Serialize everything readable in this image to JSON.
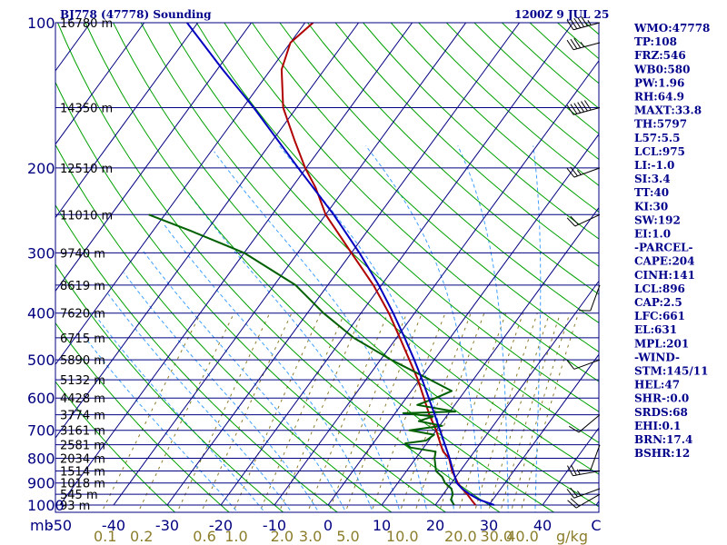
{
  "header": {
    "station": "BJ778 (47778) Sounding",
    "time": "1200Z  9 JUL 25"
  },
  "colors": {
    "isobar": "#000080",
    "isotherm": "#000080",
    "dry_adiabat": "#00a000",
    "moist_adiabat": "#40a0ff",
    "mixing_ratio": "#8b7d2b",
    "temperature": "#b00000",
    "dewpoint": "#006000",
    "parcel": "#0000c0",
    "wind_barb": "#000000"
  },
  "axis_labels": {
    "p_unit": "mb",
    "mixing_unit": "g/kg"
  },
  "chart_data": {
    "type": "line",
    "title": "BJ778 (47778) Sounding",
    "subtitle": "1200Z  9 JUL 25",
    "y_axis": "pressure (mb), logarithmic",
    "ylim": [
      1000,
      100
    ],
    "xlim": [
      -50,
      50
    ],
    "x_unit": "°C",
    "pressure_ticks": [
      "100",
      "200",
      "300",
      "400",
      "500",
      "600",
      "700",
      "800",
      "900",
      "1000"
    ],
    "temperature_ticks": [
      "-50",
      "-40",
      "-30",
      "-20",
      "-10",
      "0",
      "10",
      "20",
      "30",
      "40",
      "C"
    ],
    "temperature_tick_values": [
      -50,
      -40,
      -30,
      -20,
      -10,
      0,
      10,
      20,
      30,
      40,
      50
    ],
    "mixing_ratio_ticks": [
      "0.1",
      "0.2",
      "0.6",
      "1.0",
      "2.0",
      "3.0",
      "5.0",
      "10.0",
      "20.0",
      "30.0",
      "40.0"
    ],
    "mixing_ratio_values": [
      0.1,
      0.2,
      0.6,
      1.0,
      2.0,
      3.0,
      5.0,
      10.0,
      20.0,
      30.0,
      40.0
    ],
    "height_labels": [
      {
        "p": 100,
        "text": "16780 m"
      },
      {
        "p": 150,
        "text": "14350 m"
      },
      {
        "p": 200,
        "text": "12510 m"
      },
      {
        "p": 250,
        "text": "11010 m"
      },
      {
        "p": 300,
        "text": "9740 m"
      },
      {
        "p": 350,
        "text": "8619 m"
      },
      {
        "p": 400,
        "text": "7620 m"
      },
      {
        "p": 450,
        "text": "6715 m"
      },
      {
        "p": 500,
        "text": "5890 m"
      },
      {
        "p": 550,
        "text": "5132 m"
      },
      {
        "p": 600,
        "text": "4428 m"
      },
      {
        "p": 650,
        "text": "3774 m"
      },
      {
        "p": 700,
        "text": "3161 m"
      },
      {
        "p": 750,
        "text": "2581 m"
      },
      {
        "p": 800,
        "text": "2034 m"
      },
      {
        "p": 850,
        "text": "1514 m"
      },
      {
        "p": 900,
        "text": "1018 m"
      },
      {
        "p": 950,
        "text": "545 m"
      },
      {
        "p": 1000,
        "text": "93 m"
      }
    ],
    "series": [
      {
        "key": "temperature",
        "points": [
          {
            "p": 1000,
            "t": 27.5
          },
          {
            "p": 975,
            "t": 26
          },
          {
            "p": 950,
            "t": 24.5
          },
          {
            "p": 925,
            "t": 22.8
          },
          {
            "p": 900,
            "t": 21.2
          },
          {
            "p": 850,
            "t": 18.5
          },
          {
            "p": 800,
            "t": 16.2
          },
          {
            "p": 775,
            "t": 14.2
          },
          {
            "p": 750,
            "t": 12.8
          },
          {
            "p": 700,
            "t": 10
          },
          {
            "p": 650,
            "t": 6.6
          },
          {
            "p": 600,
            "t": 3.3
          },
          {
            "p": 550,
            "t": -0.3
          },
          {
            "p": 500,
            "t": -4.6
          },
          {
            "p": 450,
            "t": -9.4
          },
          {
            "p": 400,
            "t": -14.8
          },
          {
            "p": 350,
            "t": -21.5
          },
          {
            "p": 300,
            "t": -30
          },
          {
            "p": 250,
            "t": -40
          },
          {
            "p": 220,
            "t": -45.5
          },
          {
            "p": 200,
            "t": -50.2
          },
          {
            "p": 175,
            "t": -56
          },
          {
            "p": 150,
            "t": -62.5
          },
          {
            "p": 125,
            "t": -68
          },
          {
            "p": 110,
            "t": -70
          },
          {
            "p": 100,
            "t": -68.5
          }
        ]
      },
      {
        "key": "dewpoint",
        "points": [
          {
            "p": 1000,
            "t": 23.5
          },
          {
            "p": 975,
            "t": 22.2
          },
          {
            "p": 950,
            "t": 21.8
          },
          {
            "p": 925,
            "t": 20.8
          },
          {
            "p": 900,
            "t": 18.8
          },
          {
            "p": 875,
            "t": 17.5
          },
          {
            "p": 850,
            "t": 15.5
          },
          {
            "p": 800,
            "t": 13.5
          },
          {
            "p": 775,
            "t": 12.8
          },
          {
            "p": 760,
            "t": 7.5
          },
          {
            "p": 745,
            "t": 6
          },
          {
            "p": 735,
            "t": 9.5
          },
          {
            "p": 715,
            "t": 10.2
          },
          {
            "p": 700,
            "t": 5
          },
          {
            "p": 685,
            "t": 10.5
          },
          {
            "p": 670,
            "t": 5.5
          },
          {
            "p": 655,
            "t": 7.5
          },
          {
            "p": 645,
            "t": 1.5
          },
          {
            "p": 640,
            "t": 11
          },
          {
            "p": 620,
            "t": 3
          },
          {
            "p": 600,
            "t": 5.5
          },
          {
            "p": 580,
            "t": 7.5
          },
          {
            "p": 550,
            "t": 2
          },
          {
            "p": 500,
            "t": -8
          },
          {
            "p": 450,
            "t": -18
          },
          {
            "p": 400,
            "t": -27
          },
          {
            "p": 350,
            "t": -36
          },
          {
            "p": 300,
            "t": -50
          },
          {
            "p": 270,
            "t": -63
          },
          {
            "p": 250,
            "t": -73
          }
        ]
      },
      {
        "key": "parcel",
        "points": [
          {
            "p": 1000,
            "t": 31
          },
          {
            "p": 975,
            "t": 27.5
          },
          {
            "p": 950,
            "t": 25
          },
          {
            "p": 925,
            "t": 22.8
          },
          {
            "p": 900,
            "t": 21
          },
          {
            "p": 850,
            "t": 18.7
          },
          {
            "p": 800,
            "t": 16.3
          },
          {
            "p": 750,
            "t": 13.6
          },
          {
            "p": 700,
            "t": 10.7
          },
          {
            "p": 650,
            "t": 7.6
          },
          {
            "p": 600,
            "t": 4.2
          },
          {
            "p": 550,
            "t": 0.5
          },
          {
            "p": 500,
            "t": -3.7
          },
          {
            "p": 450,
            "t": -8.5
          },
          {
            "p": 400,
            "t": -14
          },
          {
            "p": 350,
            "t": -20.5
          },
          {
            "p": 300,
            "t": -28.5
          },
          {
            "p": 250,
            "t": -38.5
          },
          {
            "p": 200,
            "t": -51.5
          },
          {
            "p": 150,
            "t": -68
          },
          {
            "p": 125,
            "t": -79
          },
          {
            "p": 100,
            "t": -92
          }
        ]
      }
    ],
    "wind_barbs": [
      {
        "p": 100,
        "dir": 255,
        "spd": 55
      },
      {
        "p": 110,
        "dir": 255,
        "spd": 35
      },
      {
        "p": 150,
        "dir": 255,
        "spd": 60
      },
      {
        "p": 200,
        "dir": 250,
        "spd": 25
      },
      {
        "p": 250,
        "dir": 245,
        "spd": 20
      },
      {
        "p": 350,
        "dir": 200,
        "spd": 10
      },
      {
        "p": 500,
        "dir": 250,
        "spd": 10
      },
      {
        "p": 650,
        "dir": 230,
        "spd": 10
      },
      {
        "p": 750,
        "dir": 200,
        "spd": 10
      },
      {
        "p": 850,
        "dir": 260,
        "spd": 25
      },
      {
        "p": 925,
        "dir": 250,
        "spd": 25
      },
      {
        "p": 950,
        "dir": 240,
        "spd": 20
      }
    ]
  },
  "indices": [
    "WMO:47778",
    "TP:108",
    "FRZ:546",
    "WB0:580",
    "PW:1.96",
    "RH:64.9",
    "MAXT:33.8",
    "TH:5797",
    "L57:5.5",
    "LCL:975",
    "LI:-1.0",
    "SI:3.4",
    "TT:40",
    "KI:30",
    "SW:192",
    "EI:1.0",
    "-PARCEL-",
    "CAPE:204",
    "CINH:141",
    "LCL:896",
    "CAP:2.5",
    "LFC:661",
    "EL:631",
    "MPL:201",
    "-WIND-",
    "STM:145/11",
    "HEL:47",
    "SHR-:0.0",
    "SRDS:68",
    "EHI:0.1",
    "BRN:17.4",
    "BSHR:12"
  ]
}
